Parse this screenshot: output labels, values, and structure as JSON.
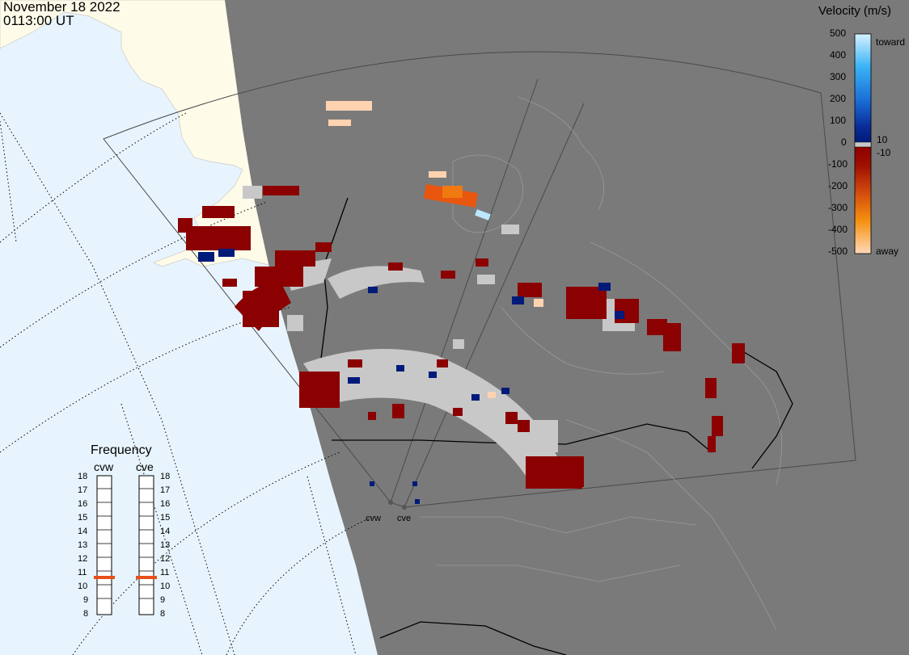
{
  "header": {
    "date": "November 18 2022",
    "time": "0113:00 UT"
  },
  "legend": {
    "title": "Velocity (m/s)",
    "ticks": [
      "500",
      "400",
      "300",
      "200",
      "100",
      "0",
      "-100",
      "-200",
      "-300",
      "-400",
      "-500"
    ],
    "near_zero": [
      "10",
      "-10"
    ],
    "toward_label": "toward",
    "away_label": "away",
    "colors": {
      "toward_high": "#cfeeff",
      "toward_mid": "#1f8fe6",
      "toward_low": "#001a7a",
      "zero": "#c8c8c8",
      "away_low": "#8b0000",
      "away_mid": "#e8560f",
      "away_high": "#ffd2b0"
    }
  },
  "frequency": {
    "title": "Frequency",
    "radars": [
      "cvw",
      "cve"
    ],
    "levels": [
      "18",
      "17",
      "16",
      "15",
      "14",
      "13",
      "12",
      "11",
      "10",
      "9",
      "8"
    ],
    "selected": {
      "cvw": 10.8,
      "cve": 10.8
    },
    "marker_color": "#e84f1a"
  },
  "map": {
    "radar_labels": [
      "cvw",
      "cve"
    ],
    "ocean_color": "#e8f4fd",
    "land_color": "#fffbe9",
    "night_color": "#7a7a7a",
    "ground_scatter_color": "#c8c8c8",
    "border_color": "#000000"
  }
}
